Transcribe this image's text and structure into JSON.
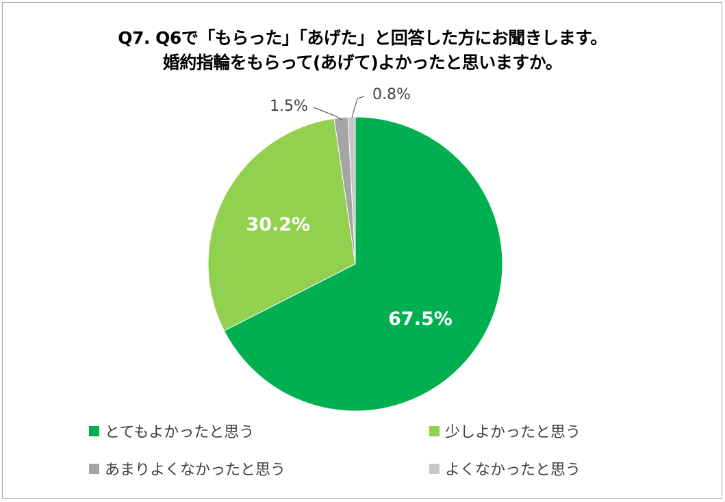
{
  "chart_data": {
    "type": "pie",
    "title_lines": [
      "Q7. Q6で「もらった」「あげた」と回答した方にお聞きします。",
      "婚約指輪をもらって(あげて)よかったと思いますか。"
    ],
    "categories": [
      "とてもよかったと思う",
      "少しよかったと思う",
      "あまりよくなかったと思う",
      "よくなかったと思う"
    ],
    "values": [
      67.5,
      30.2,
      1.5,
      0.8
    ],
    "labels": [
      "67.5%",
      "30.2%",
      "1.5%",
      "0.8%"
    ],
    "colors": [
      "#00b050",
      "#92d050",
      "#a5a5a5",
      "#c8c8c8"
    ],
    "legend_position": "bottom",
    "start_angle": "top, clockwise"
  }
}
